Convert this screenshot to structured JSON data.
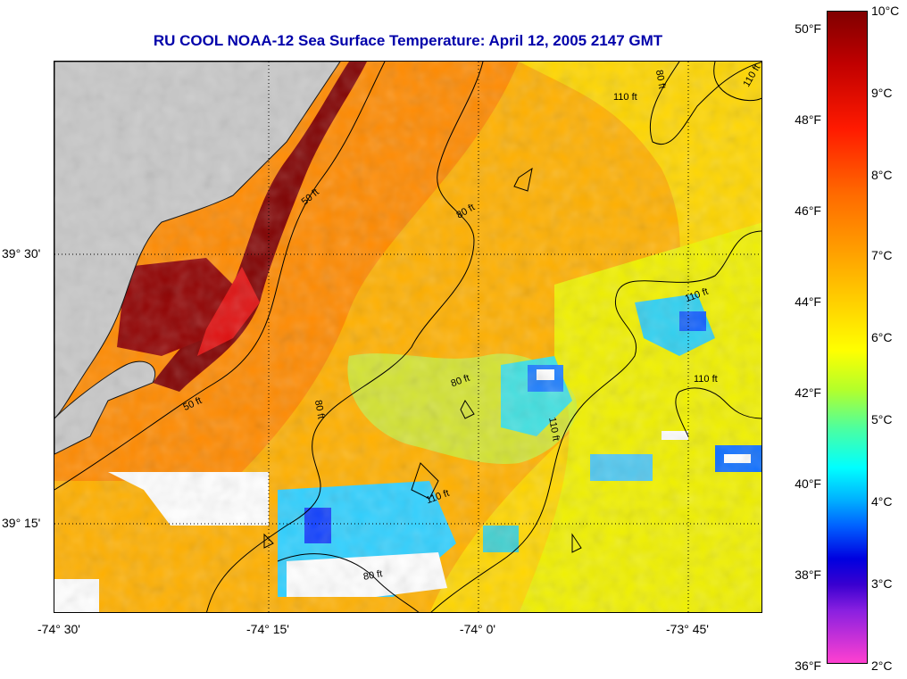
{
  "title": "RU COOL  NOAA-12  Sea Surface Temperature:  April 12, 2005 2147 GMT",
  "axes": {
    "y_ticks": [
      "39° 30'",
      "39° 15'"
    ],
    "x_ticks": [
      "-74° 30'",
      "-74° 15'",
      "-74° 0'",
      "-73° 45'"
    ]
  },
  "colorbar": {
    "fahrenheit_labels": [
      "50°F",
      "48°F",
      "46°F",
      "44°F",
      "42°F",
      "40°F",
      "38°F",
      "36°F"
    ],
    "celsius_labels": [
      "10°C",
      "9°C",
      "8°C",
      "7°C",
      "6°C",
      "5°C",
      "4°C",
      "3°C",
      "2°C"
    ]
  },
  "contours": {
    "labels": [
      "110 ft",
      "80 ft",
      "110 ft",
      "50 ft",
      "80 ft",
      "110 ft",
      "50 ft",
      "80 ft",
      "80 ft",
      "110 ft",
      "110 ft",
      "110 ft",
      "80 ft"
    ]
  },
  "colors": {
    "land": "#c8c8c8",
    "no_data": "#ffffff",
    "title": "#0000aa",
    "coast_warm": "#800000"
  }
}
